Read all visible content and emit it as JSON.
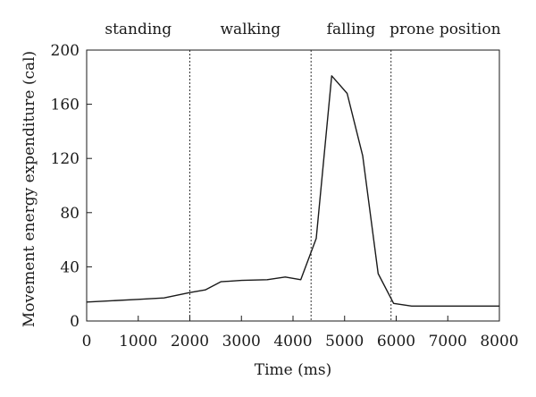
{
  "chart_data": {
    "type": "line",
    "xlabel": "Time (ms)",
    "ylabel": "Movement energy expenditure (cal)",
    "xlim": [
      0,
      8000
    ],
    "ylim": [
      0,
      200
    ],
    "x_ticks": [
      0,
      1000,
      2000,
      3000,
      4000,
      5000,
      6000,
      7000,
      8000
    ],
    "y_ticks": [
      0,
      40,
      80,
      120,
      160,
      200
    ],
    "grid": false,
    "series": [
      {
        "color": "#1a1a1a",
        "x": [
          0,
          500,
          1000,
          1500,
          2000,
          2300,
          2600,
          3000,
          3500,
          3850,
          4150,
          4450,
          4750,
          5050,
          5350,
          5650,
          5950,
          6300,
          7000,
          8000
        ],
        "y": [
          14,
          15,
          16,
          17,
          21,
          23,
          29,
          30,
          30.5,
          32.5,
          30.5,
          61,
          181,
          168,
          122,
          35,
          13,
          11,
          11,
          11
        ]
      }
    ],
    "phases": [
      {
        "label": "standing",
        "start": 0,
        "end": 2000
      },
      {
        "label": "walking",
        "start": 2000,
        "end": 4350
      },
      {
        "label": "falling",
        "start": 4350,
        "end": 5900
      },
      {
        "label": "prone position",
        "start": 5900,
        "end": 8000
      }
    ],
    "phase_boundaries": [
      2000,
      4350,
      5900
    ]
  }
}
